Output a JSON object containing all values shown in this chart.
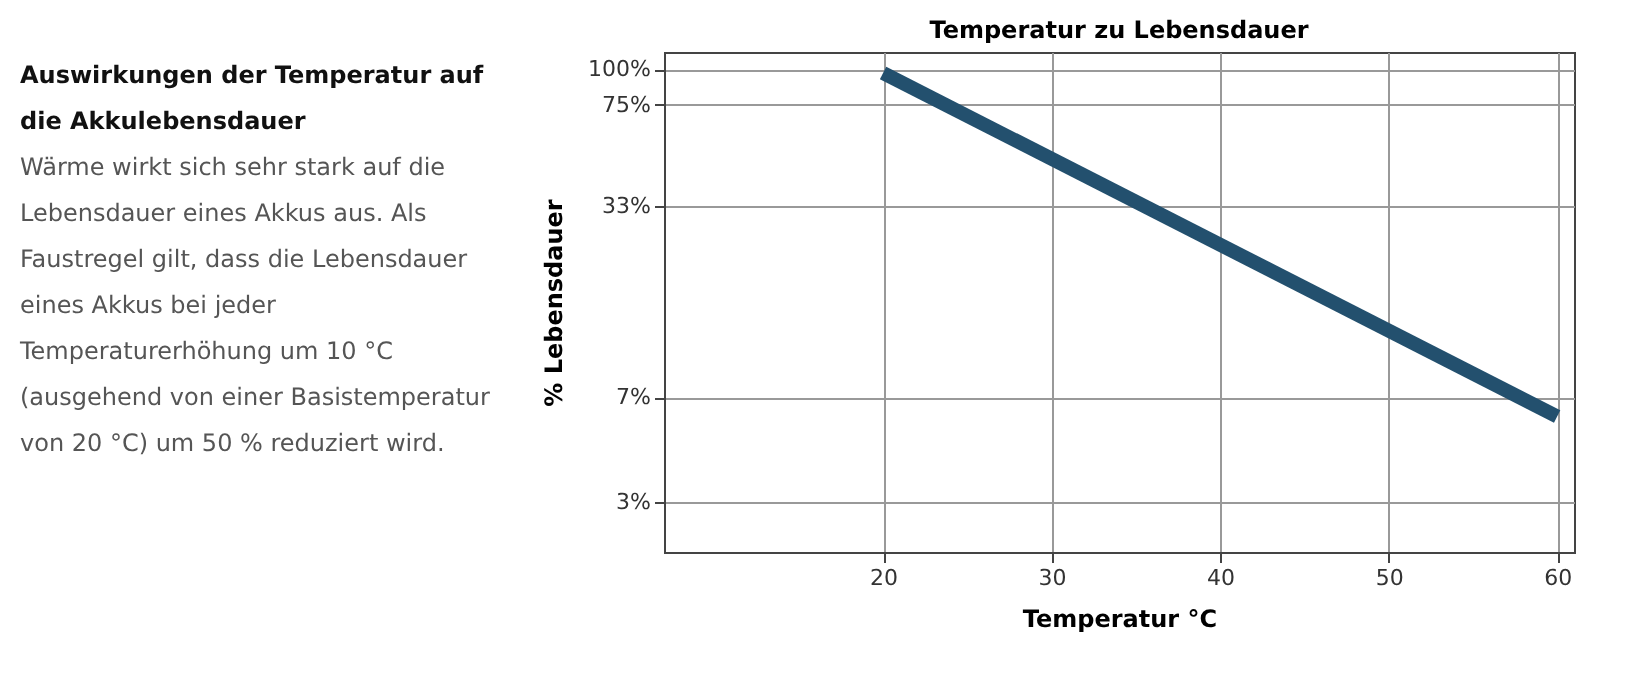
{
  "chart_data": {
    "type": "line",
    "title": "Temperatur zu Lebensdauer",
    "xlabel": "Temperatur °C",
    "ylabel": "% Lebensdauer",
    "x": [
      20,
      60
    ],
    "series": [
      {
        "color": "#23506e",
        "values": [
          97,
          6
        ]
      }
    ],
    "xlim": [
      7,
      61
    ],
    "xticks": [
      20,
      30,
      40,
      50,
      60
    ],
    "ylim": [
      2,
      115
    ],
    "log": true,
    "yticks": [
      {
        "value": 3,
        "label": "3%"
      },
      {
        "value": 7,
        "label": "7%"
      },
      {
        "value": 33,
        "label": "33%"
      },
      {
        "value": 75,
        "label": "75%"
      },
      {
        "value": 100,
        "label": "100%"
      }
    ],
    "grid": true,
    "marker": "none",
    "line_style": "solid",
    "annotations": [
      "Auswirkungen der Temperatur auf die Akkulebensdauer",
      "Wärme wirkt sich sehr stark auf die Lebensdauer eines Akkus aus. Als Faustregel gilt, dass die Lebensdauer eines Akkus bei jeder Temperaturerhöhung um 10 °C (ausgehend von einer Basistemperatur von 20 °C) um 50 % reduziert wird."
    ]
  }
}
